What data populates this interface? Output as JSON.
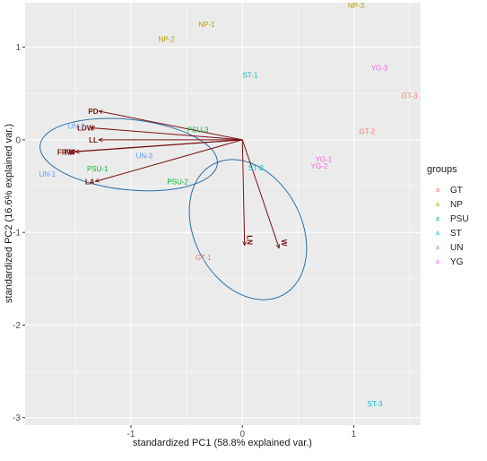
{
  "chart_data": {
    "type": "biplot",
    "title": "",
    "xlabel": "standardized PC1 (58.8% explained var.)",
    "ylabel": "standardized PC2 (16.6% explained var.)",
    "xlim": [
      -1.95,
      1.6
    ],
    "ylim": [
      -3.08,
      1.48
    ],
    "xticks": [
      -1,
      0,
      1
    ],
    "yticks": [
      -3,
      -2,
      -1,
      0,
      1
    ],
    "grid": true,
    "legend": {
      "title": "groups",
      "position": "right",
      "items": [
        {
          "label": "GT",
          "key": "a",
          "color": "#F8766D"
        },
        {
          "label": "NP",
          "key": "a",
          "color": "#B79F00"
        },
        {
          "label": "PSU",
          "key": "a",
          "color": "#00BA38"
        },
        {
          "label": "ST",
          "key": "a",
          "color": "#00BFC4"
        },
        {
          "label": "UN",
          "key": "a",
          "color": "#619CFF"
        },
        {
          "label": "YG",
          "key": "a",
          "color": "#F564E3"
        }
      ]
    },
    "points": [
      {
        "label": "NP-3",
        "group": "NP",
        "x": 1.02,
        "y": 1.45
      },
      {
        "label": "NP-1",
        "group": "NP",
        "x": -0.32,
        "y": 1.25
      },
      {
        "label": "NP-2",
        "group": "NP",
        "x": -0.68,
        "y": 1.09
      },
      {
        "label": "ST-1",
        "group": "ST",
        "x": 0.07,
        "y": 0.7
      },
      {
        "label": "YG-3",
        "group": "YG",
        "x": 1.23,
        "y": 0.78
      },
      {
        "label": "GT-3",
        "group": "GT",
        "x": 1.5,
        "y": 0.48
      },
      {
        "label": "GT-2",
        "group": "GT",
        "x": 1.12,
        "y": 0.09
      },
      {
        "label": "PSU-3",
        "group": "PSU",
        "x": -0.4,
        "y": 0.11
      },
      {
        "label": "UN-2",
        "group": "UN",
        "x": -1.49,
        "y": 0.15
      },
      {
        "label": "UN-3",
        "group": "UN",
        "x": -0.88,
        "y": -0.17
      },
      {
        "label": "UN-1",
        "group": "UN",
        "x": -1.75,
        "y": -0.37
      },
      {
        "label": "PSU-1",
        "group": "PSU",
        "x": -1.3,
        "y": -0.31
      },
      {
        "label": "PSU-2",
        "group": "PSU",
        "x": -0.58,
        "y": -0.45
      },
      {
        "label": "ST-2",
        "group": "ST",
        "x": 0.12,
        "y": -0.3
      },
      {
        "label": "YG-1",
        "group": "YG",
        "x": 0.73,
        "y": -0.21
      },
      {
        "label": "YG-2",
        "group": "YG",
        "x": 0.69,
        "y": -0.28
      },
      {
        "label": "GT-1",
        "group": "GT",
        "x": -0.35,
        "y": -1.27
      },
      {
        "label": "ST-3",
        "group": "ST",
        "x": 1.19,
        "y": -2.85
      }
    ],
    "variables": [
      {
        "label": "PD",
        "x": -1.29,
        "y": 0.31
      },
      {
        "label": "LDW",
        "x": -1.36,
        "y": 0.13
      },
      {
        "label": "LL",
        "x": -1.29,
        "y": 0.0
      },
      {
        "label": "FRW",
        "x": -1.54,
        "y": -0.13
      },
      {
        "label": "FW",
        "x": -1.5,
        "y": -0.13
      },
      {
        "label": "LA",
        "x": -1.32,
        "y": -0.45
      },
      {
        "label": "LN",
        "x": 0.02,
        "y": -1.14
      },
      {
        "label": "W",
        "x": 0.33,
        "y": -1.17
      }
    ],
    "ellipses": [
      {
        "group": "UN-PSU",
        "cx": -1.02,
        "cy": -0.16,
        "rx": 0.8,
        "ry": 0.38,
        "rotate_deg": 6
      },
      {
        "group": "ST-GT",
        "cx": 0.05,
        "cy": -0.97,
        "rx": 0.48,
        "ry": 0.8,
        "rotate_deg": -28
      }
    ]
  }
}
